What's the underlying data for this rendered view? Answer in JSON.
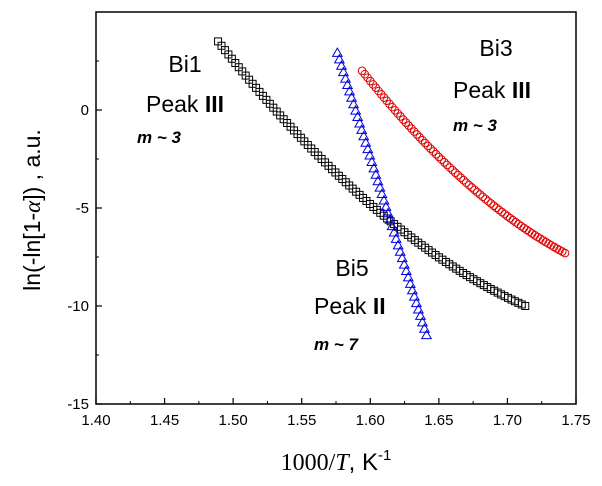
{
  "chart_data": {
    "type": "scatter",
    "title": "",
    "xlabel": {
      "prefix": "1000/",
      "var": "T",
      "suffix": ", K",
      "sup": "-1"
    },
    "ylabel": {
      "pre": "ln(-ln[1-",
      "var": "α",
      "post": "]) , a.u."
    },
    "xlim": [
      1.4,
      1.75
    ],
    "ylim": [
      -15,
      5
    ],
    "xticks": [
      "1.40",
      "1.45",
      "1.50",
      "1.55",
      "1.60",
      "1.65",
      "1.70",
      "1.75"
    ],
    "yticks": [
      "-15",
      "-10",
      "-5",
      "0"
    ],
    "grid": false,
    "series": [
      {
        "name": "Bi1",
        "marker": "square",
        "color": "#000000",
        "x_range": [
          1.489,
          1.713
        ],
        "y_range": [
          3.5,
          -10.0
        ],
        "curvature": 0.12,
        "count": 90
      },
      {
        "name": "Bi3",
        "marker": "circle",
        "color": "#e00000",
        "x_range": [
          1.594,
          1.742
        ],
        "y_range": [
          2.0,
          -7.3
        ],
        "curvature": 0.1,
        "count": 75
      },
      {
        "name": "Bi5",
        "marker": "triangle",
        "color": "#0000dd",
        "x_range": [
          1.576,
          1.641
        ],
        "y_range": [
          2.9,
          -11.5
        ],
        "curvature": 0.0,
        "count": 45
      }
    ],
    "annotations": [
      {
        "id": "bi1",
        "line1": "Bi1",
        "line2_text": "Peak ",
        "line2_num": "III",
        "m_sym": "m",
        "m_val": " ~ 3"
      },
      {
        "id": "bi3",
        "line1": "Bi3",
        "line2_text": "Peak ",
        "line2_num": "III",
        "m_sym": "m",
        "m_val": " ~ 3"
      },
      {
        "id": "bi5",
        "line1": "Bi5",
        "line2_text": "Peak ",
        "line2_num": "II",
        "m_sym": "m",
        "m_val": " ~ 7"
      }
    ]
  }
}
